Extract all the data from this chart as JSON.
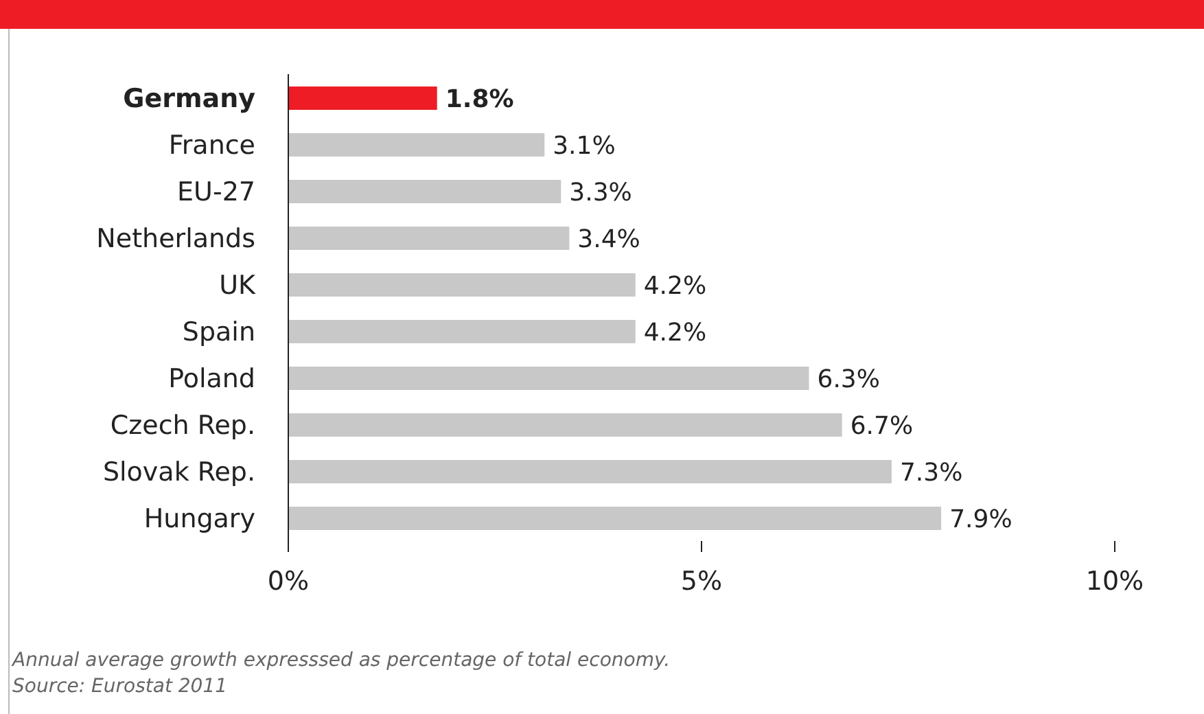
{
  "chart_data": {
    "type": "bar",
    "orientation": "horizontal",
    "categories": [
      "Germany",
      "France",
      "EU-27",
      "Netherlands",
      "UK",
      "Spain",
      "Poland",
      "Czech Rep.",
      "Slovak Rep.",
      "Hungary"
    ],
    "values": [
      1.8,
      3.1,
      3.3,
      3.4,
      4.2,
      4.2,
      6.3,
      6.7,
      7.3,
      7.9
    ],
    "colors": [
      "#ee1c25",
      "#c8c8c8",
      "#c8c8c8",
      "#c8c8c8",
      "#c8c8c8",
      "#c8c8c8",
      "#c8c8c8",
      "#c8c8c8",
      "#c8c8c8",
      "#c8c8c8"
    ],
    "value_labels": [
      "1.8%",
      "3.1%",
      "3.3%",
      "3.4%",
      "4.2%",
      "4.2%",
      "6.3%",
      "6.7%",
      "7.3%",
      "7.9%"
    ],
    "xlim": [
      0,
      10
    ],
    "xticks": [
      {
        "value": 0,
        "label": "0%"
      },
      {
        "value": 5,
        "label": "5%"
      },
      {
        "value": 10,
        "label": "10%"
      }
    ],
    "grid": false,
    "legend": false,
    "annotations": [
      "Annual average growth expresssed as percentage of total economy.",
      "Source: Eurostat 2011"
    ]
  }
}
